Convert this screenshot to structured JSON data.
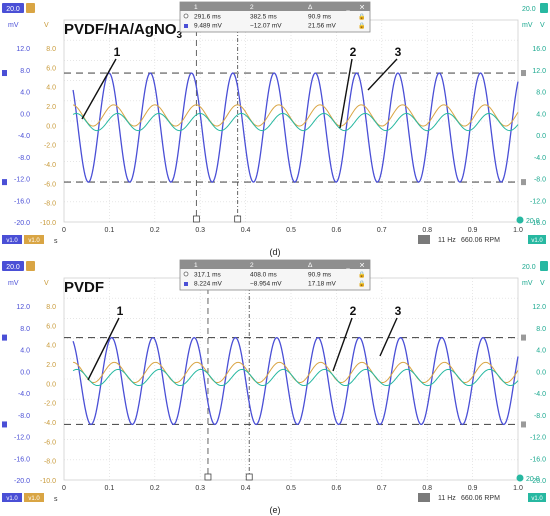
{
  "colors": {
    "ch1": "#4a4fd6",
    "ch2": "#d9a544",
    "ch3": "#27b8a1",
    "ch1_label": "#4a4fd6",
    "ch2_label": "#c89a3a",
    "ch3_label": "#1aa88f",
    "grid": "#d8d8d8",
    "ref": "#555555"
  },
  "panels": [
    {
      "id": "d",
      "title_main": "PVDF/HA/AgNO",
      "title_sub": "3",
      "caption": "(d)",
      "left_top_badge": "20.0",
      "left_units": [
        "mV",
        "V"
      ],
      "right_top_badge": "20.0",
      "right_units": [
        "mV",
        "V"
      ],
      "right_bottom_badge": "20.0",
      "y_left_ch1": [
        "12.0",
        "8.0",
        "4.0",
        "0.0",
        "-4.0",
        "-8.0",
        "-12.0",
        "-16.0",
        "-20.0"
      ],
      "y_left_ch2": [
        "8.0",
        "6.0",
        "4.0",
        "2.0",
        "0.0",
        "-2.0",
        "-4.0",
        "-6.0",
        "-8.0",
        "-10.0"
      ],
      "y_right_ch3": [
        "16.0",
        "12.0",
        "8.0",
        "4.0",
        "0.0",
        "-4.0",
        "-8.0",
        "-12.0",
        "-16.0"
      ],
      "x_ticks": [
        "0",
        "0.1",
        "0.2",
        "0.3",
        "0.4",
        "0.5",
        "0.6",
        "0.7",
        "0.8",
        "0.9",
        "1.0"
      ],
      "x_unit": "s",
      "footer_left": [
        "v1.0",
        "v1.0"
      ],
      "footer_right": [
        "11 Hz",
        "660.06 RPM"
      ],
      "footer_badge": "v1.0",
      "cursor_table": {
        "headers": [
          "1",
          "2",
          "Δ"
        ],
        "rows": [
          [
            "291.6 ms",
            "382.5 ms",
            "90.9 ms"
          ],
          [
            "9.489 mV",
            "−12.07 mV",
            "21.56 mV"
          ]
        ]
      },
      "curve_labels": [
        "1",
        "2",
        "3"
      ],
      "ref_levels_mV": [
        9.5,
        -12.1
      ],
      "cursor_times_s": [
        0.2916,
        0.3825
      ],
      "signals": [
        {
          "channel": 1,
          "amplitude_mV": 10.8,
          "offset_mV": -1.3,
          "frequency_hz": 11,
          "phase_rad": 1.0
        },
        {
          "channel": 2,
          "amplitude_mV": 2.1,
          "offset_mV": 1.1,
          "frequency_hz": 11,
          "phase_rad": 0.3
        },
        {
          "channel": 3,
          "amplitude_mV": 1.7,
          "offset_mV": -0.2,
          "frequency_hz": 11,
          "phase_rad": -0.3
        }
      ]
    },
    {
      "id": "e",
      "title_main": "PVDF",
      "title_sub": "",
      "caption": "(e)",
      "left_top_badge": "20.0",
      "left_units": [
        "mV",
        "V"
      ],
      "right_top_badge": "20.0",
      "right_units": [
        "mV",
        "V"
      ],
      "right_bottom_badge": "20.0",
      "y_left_ch1": [
        "12.0",
        "8.0",
        "4.0",
        "0.0",
        "-4.0",
        "-8.0",
        "-12.0",
        "-16.0",
        "-20.0"
      ],
      "y_left_ch2": [
        "8.0",
        "6.0",
        "4.0",
        "2.0",
        "0.0",
        "-2.0",
        "-4.0",
        "-6.0",
        "-8.0",
        "-10.0"
      ],
      "y_right_ch3": [
        "12.0",
        "8.0",
        "4.0",
        "0.0",
        "-4.0",
        "-8.0",
        "-12.0",
        "-16.0",
        "-20.0"
      ],
      "x_ticks": [
        "0",
        "0.1",
        "0.2",
        "0.3",
        "0.4",
        "0.5",
        "0.6",
        "0.7",
        "0.8",
        "0.9",
        "1.0"
      ],
      "x_unit": "s",
      "footer_left": [
        "v1.0",
        "v1.0"
      ],
      "footer_right": [
        "11 Hz",
        "660.06 RPM"
      ],
      "footer_badge": "v1.0",
      "cursor_table": {
        "headers": [
          "1",
          "2",
          "Δ"
        ],
        "rows": [
          [
            "317.1 ms",
            "408.0 ms",
            "90.9 ms"
          ],
          [
            "8.224 mV",
            "−8.954 mV",
            "17.18 mV"
          ]
        ]
      },
      "curve_labels": [
        "1",
        "2",
        "3"
      ],
      "ref_levels_mV": [
        8.2,
        -9.0
      ],
      "cursor_times_s": [
        0.3171,
        0.408
      ],
      "signals": [
        {
          "channel": 1,
          "amplitude_mV": 8.6,
          "offset_mV": -0.4,
          "frequency_hz": 11,
          "phase_rad": 0.6
        },
        {
          "channel": 2,
          "amplitude_mV": 2.0,
          "offset_mV": 1.3,
          "frequency_hz": 11,
          "phase_rad": 0.2
        },
        {
          "channel": 3,
          "amplitude_mV": 1.6,
          "offset_mV": 0.3,
          "frequency_hz": 11,
          "phase_rad": -0.4
        }
      ]
    }
  ],
  "chart_data": [
    {
      "type": "line",
      "panel": "d",
      "title": "PVDF/HA/AgNO3",
      "xlabel": "s",
      "ylabel": "mV",
      "xlim": [
        0,
        1.0
      ],
      "ylim": [
        -20,
        20
      ],
      "grid": true,
      "series": [
        {
          "name": "1",
          "description_values": {
            "amplitude_mV": 10.8,
            "frequency_hz": 11
          }
        },
        {
          "name": "2",
          "description_values": {
            "amplitude_mV": 2.1,
            "frequency_hz": 11
          }
        },
        {
          "name": "3",
          "description_values": {
            "amplitude_mV": 1.7,
            "frequency_hz": 11
          }
        }
      ],
      "cursors": {
        "t1_ms": 291.6,
        "t2_ms": 382.5,
        "dt_ms": 90.9,
        "v1_mV": 9.489,
        "v2_mV": -12.07,
        "dv_mV": 21.56
      }
    },
    {
      "type": "line",
      "panel": "e",
      "title": "PVDF",
      "xlabel": "s",
      "ylabel": "mV",
      "xlim": [
        0,
        1.0
      ],
      "ylim": [
        -20,
        20
      ],
      "grid": true,
      "series": [
        {
          "name": "1",
          "description_values": {
            "amplitude_mV": 8.6,
            "frequency_hz": 11
          }
        },
        {
          "name": "2",
          "description_values": {
            "amplitude_mV": 2.0,
            "frequency_hz": 11
          }
        },
        {
          "name": "3",
          "description_values": {
            "amplitude_mV": 1.6,
            "frequency_hz": 11
          }
        }
      ],
      "cursors": {
        "t1_ms": 317.1,
        "t2_ms": 408.0,
        "dt_ms": 90.9,
        "v1_mV": 8.224,
        "v2_mV": -8.954,
        "dv_mV": 17.18
      }
    }
  ]
}
